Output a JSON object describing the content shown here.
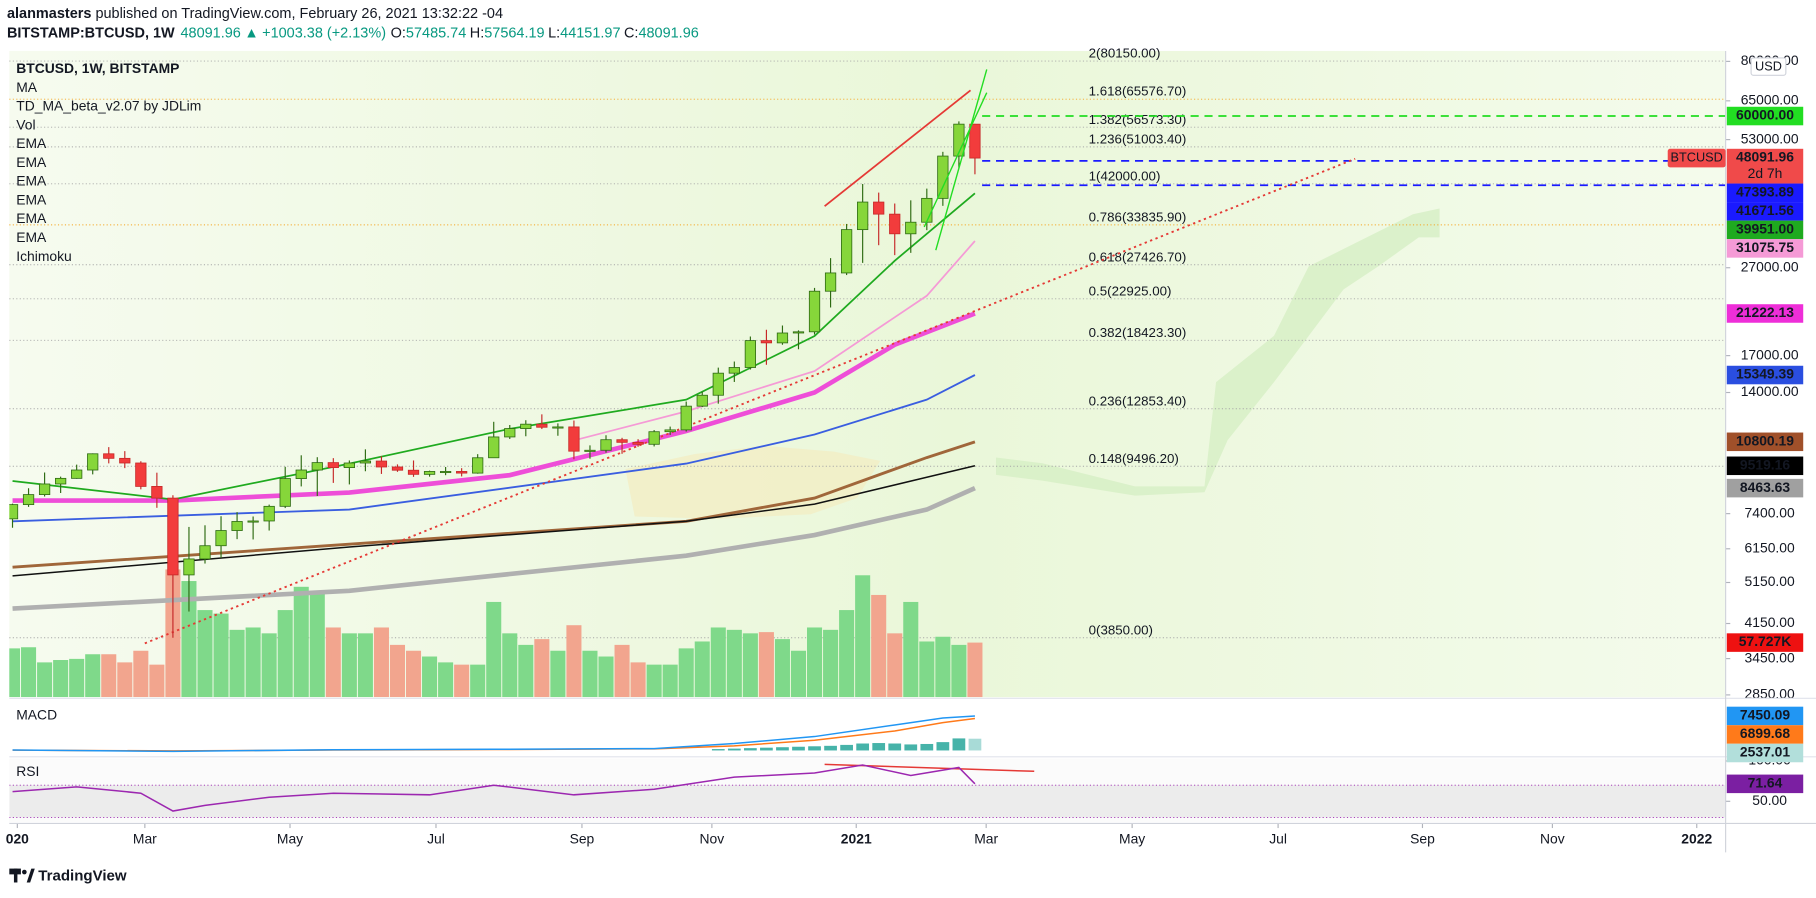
{
  "header": {
    "author": "alanmasters",
    "published": " published on TradingView.com, February 26, 2021 13:32:22 -04",
    "symbol": "BITSTAMP:BTCUSD, 1W",
    "last": "48091.96",
    "change_arrow": "▲",
    "change": "+1003.38 (+2.13%)",
    "ohlc_labels": [
      "O:",
      "H:",
      "L:",
      "C:"
    ],
    "ohlc_values": [
      "57485.74",
      "57564.19",
      "44151.97",
      "48091.96"
    ]
  },
  "legend": [
    "BTCUSD, 1W, BITSTAMP",
    "MA",
    "TD_MA_beta_v2.07 by JDLim",
    "Vol",
    "EMA",
    "EMA",
    "EMA",
    "EMA",
    "EMA",
    "EMA",
    "Ichimoku"
  ],
  "currency": "USD",
  "footer": "TradingView",
  "chart_data": [
    {
      "type": "candlestick",
      "log": true,
      "xlim": [
        -0.2,
        106.8
      ],
      "xticks": [
        {
          "value": 0.3,
          "label": "020"
        },
        {
          "value": 8.25,
          "label": "Mar"
        },
        {
          "value": 17.3,
          "label": "May"
        },
        {
          "value": 26.4,
          "label": "Jul"
        },
        {
          "value": 35.5,
          "label": "Sep"
        },
        {
          "value": 43.6,
          "label": "Nov"
        },
        {
          "value": 52.6,
          "label": "2021"
        },
        {
          "value": 60.7,
          "label": "Mar"
        },
        {
          "value": 69.8,
          "label": "May"
        },
        {
          "value": 78.9,
          "label": "Jul"
        },
        {
          "value": 87.9,
          "label": "Sep"
        },
        {
          "value": 96.0,
          "label": "Nov"
        },
        {
          "value": 105.0,
          "label": "2022"
        }
      ],
      "ylim": [
        2816,
        84000
      ],
      "yticks": [
        {
          "value": 80000,
          "label": "80000.00"
        },
        {
          "value": 65000,
          "label": "65000.00"
        },
        {
          "value": 53000,
          "label": "53000.00"
        },
        {
          "value": 27000,
          "label": "27000.00"
        },
        {
          "value": 17000,
          "label": "17000.00"
        },
        {
          "value": 14000,
          "label": "14000.00"
        },
        {
          "value": 7400,
          "label": "7400.00"
        },
        {
          "value": 6150,
          "label": "6150.00"
        },
        {
          "value": 5150,
          "label": "5150.00"
        },
        {
          "value": 4150,
          "label": "4150.00"
        },
        {
          "value": 3450,
          "label": "3450.00"
        },
        {
          "value": 2850,
          "label": "2850.00"
        }
      ],
      "up_color": "#86d63a",
      "down_color": "#f23c3c",
      "volume_up_color": "#7fd98a",
      "volume_down_color": "#f2a58e",
      "open": [
        7200,
        7760,
        8180,
        8650,
        8910,
        9310,
        10140,
        9900,
        9660,
        8540,
        8030,
        5360,
        5830,
        6250,
        6770,
        7100,
        7120,
        7690,
        8900,
        9310,
        9680,
        9430,
        9660,
        9760,
        9460,
        9300,
        9100,
        9240,
        9240,
        9160,
        9930,
        11080,
        11580,
        11850,
        11660,
        11680,
        10280,
        10330,
        10920,
        10770,
        10660,
        11390,
        11500,
        13030,
        13800,
        15500,
        15970,
        18400,
        18180,
        19150,
        19270,
        23860,
        26270,
        33000,
        38150,
        35800,
        32280,
        34310,
        38900,
        48600,
        57485.74
      ],
      "high": [
        7800,
        8460,
        9190,
        8990,
        9580,
        10160,
        10500,
        10280,
        9750,
        9180,
        8150,
        6900,
        6960,
        7300,
        7460,
        7290,
        7760,
        9470,
        10060,
        9960,
        9910,
        9790,
        10380,
        10010,
        9590,
        9790,
        9280,
        9460,
        9400,
        10120,
        12000,
        11800,
        12100,
        12480,
        11900,
        12080,
        10600,
        11180,
        11030,
        10950,
        11490,
        11700,
        13350,
        14060,
        15960,
        16480,
        18800,
        19480,
        19920,
        19420,
        24280,
        28400,
        34000,
        41950,
        40100,
        37860,
        38500,
        40950,
        49700,
        58350,
        57564.19
      ],
      "low": [
        6870,
        7670,
        8100,
        8250,
        8890,
        9100,
        9640,
        9400,
        8410,
        7630,
        3850,
        4420,
        5690,
        5860,
        6470,
        6460,
        6770,
        7620,
        8540,
        8120,
        8700,
        8630,
        9250,
        9120,
        9220,
        8980,
        8990,
        9060,
        9000,
        9130,
        9930,
        10960,
        11120,
        11550,
        11150,
        9850,
        9880,
        10200,
        10140,
        10520,
        10540,
        11200,
        11400,
        12970,
        13200,
        14800,
        15800,
        16200,
        18000,
        17580,
        19000,
        21900,
        25980,
        27700,
        30400,
        28850,
        29200,
        32900,
        37400,
        45700,
        44151.97
      ],
      "close": [
        7760,
        8180,
        8650,
        8910,
        9310,
        10140,
        9900,
        9660,
        8540,
        8030,
        5360,
        5830,
        6250,
        6770,
        7100,
        7120,
        7690,
        8900,
        9310,
        9680,
        9430,
        9660,
        9760,
        9460,
        9300,
        9100,
        9240,
        9240,
        9160,
        9930,
        11080,
        11580,
        11850,
        11660,
        11680,
        10280,
        10330,
        10920,
        10770,
        10660,
        11390,
        11500,
        13030,
        13800,
        15500,
        15970,
        18400,
        18180,
        19150,
        19270,
        23860,
        26270,
        33000,
        38150,
        35800,
        32280,
        34310,
        38900,
        48600,
        57490,
        48091.96
      ],
      "volume": [
        51600,
        52800,
        36800,
        39300,
        40500,
        45400,
        45400,
        36800,
        49100,
        34400,
        135100,
        122800,
        92100,
        88400,
        71200,
        73700,
        67500,
        92100,
        116700,
        110500,
        73700,
        67500,
        67500,
        73700,
        55300,
        49100,
        43000,
        36800,
        34400,
        34400,
        100700,
        67500,
        55300,
        61400,
        49100,
        76100,
        49100,
        43000,
        55300,
        36800,
        34400,
        34400,
        51600,
        58900,
        73700,
        71200,
        67500,
        68800,
        61400,
        49100,
        73700,
        71200,
        92100,
        128900,
        108100,
        67500,
        100700,
        58900,
        63900,
        55300,
        57727
      ],
      "volume_lim": [
        0,
        240000
      ],
      "series": [
        {
          "color": "#b0b0b0",
          "width": 4,
          "x": [
            0,
            21,
            42,
            50,
            57,
            60
          ],
          "values": [
            4490,
            4930,
            5930,
            6610,
            7560,
            8463
          ]
        },
        {
          "color": "#a0663a",
          "width": 2.5,
          "x": [
            0,
            21,
            42,
            50,
            57,
            60
          ],
          "values": [
            5580,
            6300,
            7110,
            8030,
            9940,
            10800
          ]
        },
        {
          "color": "#111111",
          "width": 1.3,
          "x": [
            0,
            21,
            42,
            50,
            57,
            60
          ],
          "values": [
            5330,
            6210,
            7110,
            7780,
            8960,
            9519
          ]
        },
        {
          "color": "#3a5ee0",
          "width": 1.6,
          "x": [
            0,
            21,
            42,
            50,
            57,
            60
          ],
          "values": [
            7110,
            7560,
            9630,
            11220,
            13480,
            15349
          ]
        },
        {
          "color": "#ee4ed8",
          "width": 4,
          "x": [
            0,
            10,
            21,
            31,
            42,
            50,
            55,
            60
          ],
          "values": [
            7930,
            7930,
            8270,
            9060,
            11430,
            14000,
            18000,
            21222
          ]
        },
        {
          "color": "#f59ad6",
          "width": 1.5,
          "x": [
            35,
            42,
            50,
            57,
            60
          ],
          "values": [
            10880,
            12680,
            15670,
            23300,
            31075
          ]
        },
        {
          "color": "#1faa1f",
          "width": 1.5,
          "x": [
            0,
            10,
            21,
            31,
            42,
            50,
            55,
            60
          ],
          "values": [
            8790,
            7970,
            9630,
            11560,
            13480,
            18850,
            28000,
            39951
          ]
        },
        {
          "color": "#e53935",
          "width": 1.6,
          "dotted": true,
          "x": [
            8.25,
            83.7
          ],
          "values": [
            3740,
            47900
          ]
        }
      ],
      "fib_levels": [
        {
          "value": 80150,
          "label": "2(80150.00)",
          "color": "#a8a8a8"
        },
        {
          "value": 65576.7,
          "label": "1.618(65576.70)",
          "color": "#f5a623"
        },
        {
          "value": 56573.3,
          "label": "1.382(56573.30)",
          "color": "#a8a8a8"
        },
        {
          "value": 51003.4,
          "label": "1.236(51003.40)",
          "color": "#a8a8a8"
        },
        {
          "value": 42000,
          "label": "1(42000.00)",
          "color": "#a8a8a8"
        },
        {
          "value": 33835.9,
          "label": "0.786(33835.90)",
          "color": "#f5a623"
        },
        {
          "value": 27426.7,
          "label": "0.618(27426.70)",
          "color": "#a8a8a8"
        },
        {
          "value": 22925,
          "label": "0.5(22925.00)",
          "color": "#a8a8a8"
        },
        {
          "value": 18423.3,
          "label": "0.382(18423.30)",
          "color": "#a8a8a8"
        },
        {
          "value": 12853.4,
          "label": "0.236(12853.40)",
          "color": "#a8a8a8"
        },
        {
          "value": 9496.2,
          "label": "0.148(9496.20)",
          "color": "#a8a8a8"
        },
        {
          "value": 3850,
          "label": "0(3850.00)",
          "color": "#a8a8a8"
        }
      ],
      "h_lines": [
        {
          "value": 60000,
          "color": "#22dd22"
        },
        {
          "value": 47393.89,
          "color": "#1a1aff"
        },
        {
          "value": 41671.56,
          "color": "#1a1aff"
        }
      ],
      "badges": [
        {
          "value": 60000,
          "label": "60000.00",
          "color": "#22dd22",
          "text_color": "#000000"
        },
        {
          "value": 48091.96,
          "label": "48091.96",
          "name": "BTCUSD",
          "countdown": "2d 7h",
          "color": "#f04a4a",
          "text_color": "#ffffff"
        },
        {
          "value": 47393.89,
          "label": "47393.89",
          "color": "#1a1aff",
          "text_color": "#ffffff"
        },
        {
          "value": 41671.56,
          "label": "41671.56",
          "color": "#1a1aff",
          "text_color": "#ffffff"
        },
        {
          "value": 39951,
          "label": "39951.00",
          "color": "#1faa1f",
          "text_color": "#ffffff"
        },
        {
          "value": 31075.75,
          "label": "31075.75",
          "color": "#f59ad6",
          "text_color": "#000000"
        },
        {
          "value": 21222.13,
          "label": "21222.13",
          "color": "#ee2ed8",
          "text_color": "#ffffff"
        },
        {
          "value": 15349.39,
          "label": "15349.39",
          "color": "#2a4ee0",
          "text_color": "#ffffff"
        },
        {
          "value": 10800.19,
          "label": "10800.19",
          "color": "#a0502a",
          "text_color": "#ffffff"
        },
        {
          "value": 9519.16,
          "label": "9519.16",
          "color": "#000000",
          "text_color": "#ffffff"
        },
        {
          "value": 8463.63,
          "label": "8463.63",
          "color": "#a0a0a0",
          "text_color": "#000000"
        }
      ],
      "volume_badge": {
        "value": 57727,
        "label": "57.727K",
        "color": "#ee1111",
        "text_color": "#ffffff"
      }
    },
    {
      "type": "macd",
      "title": "MACD",
      "ylim": [
        -1000,
        11000
      ],
      "macd": {
        "color": "#2196f3",
        "x": [
          0,
          10,
          20,
          30,
          40,
          45,
          50,
          55,
          58,
          60
        ],
        "values": [
          100,
          -200,
          150,
          250,
          400,
          1500,
          3000,
          5500,
          7000,
          7450
        ]
      },
      "signal": {
        "color": "#ff7a1a",
        "x": [
          0,
          10,
          20,
          30,
          40,
          45,
          50,
          55,
          58,
          60
        ],
        "values": [
          80,
          -100,
          100,
          200,
          350,
          1000,
          2200,
          4200,
          6000,
          6899
        ]
      },
      "histogram": {
        "color": "#26a69a",
        "x": [
          44,
          45,
          46,
          47,
          48,
          49,
          50,
          51,
          52,
          53,
          54,
          55,
          56,
          57,
          58,
          59,
          60
        ],
        "values": [
          300,
          400,
          500,
          600,
          700,
          800,
          900,
          1000,
          1200,
          1500,
          1600,
          1500,
          1300,
          1400,
          1800,
          2600,
          2537
        ]
      },
      "badges": [
        {
          "value": 7450.09,
          "label": "7450.09",
          "color": "#2196f3",
          "text_color": "#ffffff"
        },
        {
          "value": 6899.68,
          "label": "6899.68",
          "color": "#ff7a1a",
          "text_color": "#ffffff"
        },
        {
          "value": 2537.01,
          "label": "2537.01",
          "color": "#b2dfdb",
          "text_color": "#000000"
        }
      ]
    },
    {
      "type": "line",
      "title": "RSI",
      "ylim": [
        24,
        103
      ],
      "yticks": [
        {
          "value": 100,
          "label": "100.00"
        },
        {
          "value": 50,
          "label": "50.00"
        }
      ],
      "bands": [
        30,
        70
      ],
      "series": [
        {
          "color": "#9c27b0",
          "x": [
            0,
            4,
            8,
            10,
            12,
            16,
            20,
            26,
            30,
            35,
            40,
            45,
            50,
            53,
            56,
            59,
            60
          ],
          "values": [
            62,
            68,
            60,
            38,
            45,
            55,
            60,
            58,
            70,
            58,
            65,
            80,
            85,
            95,
            82,
            92,
            71.64
          ]
        }
      ],
      "badges": [
        {
          "value": 71.64,
          "label": "71.64",
          "color": "#7b1fa2",
          "text_color": "#ffffff"
        }
      ]
    }
  ]
}
